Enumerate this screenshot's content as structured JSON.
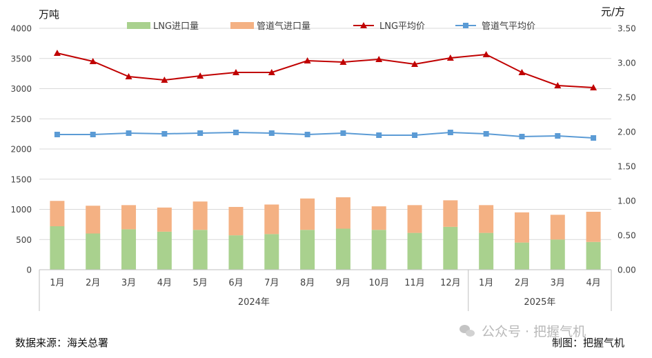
{
  "chart_data": {
    "type": "bar+line",
    "left_axis": {
      "unit": "万吨",
      "ylim": [
        0,
        4000
      ],
      "ticks": [
        "0",
        "500",
        "1000",
        "1500",
        "2000",
        "2500",
        "3000",
        "3500",
        "4000"
      ]
    },
    "right_axis": {
      "unit": "元/方",
      "ylim": [
        0,
        3.5
      ],
      "ticks": [
        "0.00",
        "0.50",
        "1.00",
        "1.50",
        "2.00",
        "2.50",
        "3.00",
        "3.50"
      ]
    },
    "categories": [
      "1月",
      "2月",
      "3月",
      "4月",
      "5月",
      "6月",
      "7月",
      "8月",
      "9月",
      "10月",
      "11月",
      "12月",
      "1月",
      "2月",
      "3月",
      "4月"
    ],
    "groups": [
      {
        "label": "2024年",
        "count": 12
      },
      {
        "label": "2025年",
        "count": 4
      }
    ],
    "series": [
      {
        "name": "LNG进口量",
        "type": "bar",
        "axis": "left",
        "color": "#a9d18e",
        "values": [
          720,
          600,
          670,
          630,
          660,
          570,
          590,
          660,
          680,
          660,
          610,
          710,
          610,
          450,
          500,
          460
        ]
      },
      {
        "name": "管道气进口量",
        "type": "bar",
        "axis": "left",
        "color": "#f4b183",
        "values": [
          420,
          460,
          400,
          400,
          470,
          470,
          490,
          520,
          520,
          390,
          460,
          440,
          460,
          500,
          410,
          500
        ]
      },
      {
        "name": "LNG平均价",
        "type": "line",
        "axis": "right",
        "color": "#c00000",
        "marker": "triangle",
        "values": [
          3.14,
          3.02,
          2.8,
          2.75,
          2.81,
          2.86,
          2.86,
          3.03,
          3.01,
          3.05,
          2.98,
          3.07,
          3.12,
          2.86,
          2.67,
          2.64
        ]
      },
      {
        "name": "管道气平均价",
        "type": "line",
        "axis": "right",
        "color": "#5b9bd5",
        "marker": "square",
        "values": [
          1.96,
          1.96,
          1.98,
          1.97,
          1.98,
          1.99,
          1.98,
          1.96,
          1.98,
          1.95,
          1.95,
          1.99,
          1.97,
          1.93,
          1.94,
          1.91
        ]
      }
    ],
    "grid": true,
    "legend_position": "top"
  },
  "footer": {
    "source": "数据来源：海关总署",
    "maker": "制图：把握气机",
    "watermark": "公众号 · 把握气机"
  }
}
